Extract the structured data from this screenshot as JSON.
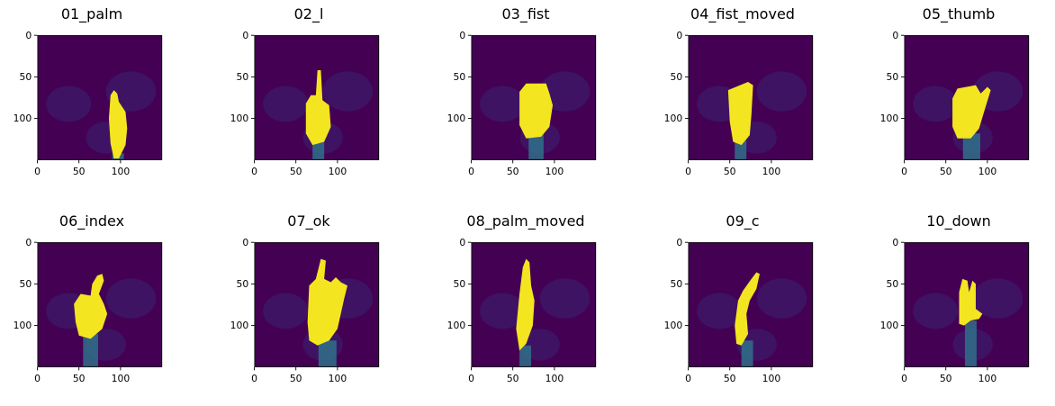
{
  "figure": {
    "panels": [
      {
        "title": "01_palm",
        "pose": "palm"
      },
      {
        "title": "02_l",
        "pose": "l"
      },
      {
        "title": "03_fist",
        "pose": "fist"
      },
      {
        "title": "04_fist_moved",
        "pose": "fist_moved"
      },
      {
        "title": "05_thumb",
        "pose": "thumb"
      },
      {
        "title": "06_index",
        "pose": "index"
      },
      {
        "title": "07_ok",
        "pose": "ok"
      },
      {
        "title": "08_palm_moved",
        "pose": "palm_moved"
      },
      {
        "title": "09_c",
        "pose": "c"
      },
      {
        "title": "10_down",
        "pose": "down"
      }
    ],
    "x_ticks": [
      "0",
      "50",
      "100"
    ],
    "y_ticks": [
      "0",
      "50",
      "100"
    ],
    "x_tick_values": [
      0,
      50,
      100
    ],
    "y_tick_values": [
      0,
      50,
      100
    ],
    "image_extent": [
      0,
      150
    ],
    "colormap": "viridis",
    "colors": {
      "background_dark": "#440154",
      "background_mid": "#3b1f6e",
      "hand_bright": "#f4e521",
      "hand_mid": "#6ccd5a",
      "arm": "#2f7e8e"
    }
  }
}
